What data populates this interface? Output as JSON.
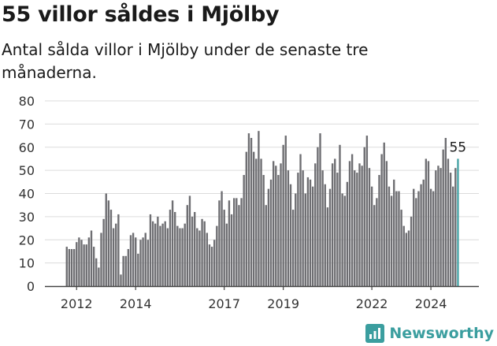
{
  "title": "55 villor såldes i Mjölby",
  "subtitle": "Antal sålda villor i Mjölby under de senaste tre månaderna.",
  "brand": {
    "name": "Newsworthy",
    "icon": "bar-chart-icon",
    "color": "#3b9e9f"
  },
  "chart_data": {
    "type": "bar",
    "title": "55 villor såldes i Mjölby",
    "subtitle": "Antal sålda villor i Mjölby under de senaste tre månaderna.",
    "xlabel": "",
    "ylabel": "",
    "ylim": [
      0,
      80
    ],
    "yticks": [
      0,
      10,
      20,
      30,
      40,
      50,
      60,
      70,
      80
    ],
    "xtick_labels": [
      {
        "label": "2012",
        "index": 4
      },
      {
        "label": "2014",
        "index": 28
      },
      {
        "label": "2017",
        "index": 64
      },
      {
        "label": "2019",
        "index": 88
      },
      {
        "label": "2022",
        "index": 124
      },
      {
        "label": "2024",
        "index": 148
      }
    ],
    "grid": true,
    "bar_color": "#6e6e72",
    "highlight_color": "#3b9e9f",
    "highlight_label": "55",
    "series": [
      {
        "values": [
          17,
          16,
          16,
          16,
          19,
          21,
          20,
          18,
          18,
          21,
          24,
          17,
          12,
          8,
          23,
          29,
          40,
          37,
          33,
          25,
          27,
          31,
          5,
          13,
          13,
          16,
          22,
          23,
          21,
          14,
          20,
          21,
          23,
          20,
          31,
          28,
          27,
          30,
          26,
          27,
          28,
          25,
          33,
          37,
          32,
          26,
          25,
          25,
          27,
          35,
          39,
          30,
          32,
          25,
          24,
          29,
          28,
          23,
          18,
          17,
          20,
          26,
          37,
          41,
          33,
          27,
          37,
          31,
          38,
          38,
          35,
          38,
          48,
          58,
          66,
          64,
          58,
          55,
          67,
          55,
          48,
          35,
          42,
          46,
          54,
          52,
          48,
          53,
          61,
          65,
          50,
          44,
          33,
          40,
          49,
          57,
          50,
          40,
          47,
          46,
          43,
          53,
          60,
          66,
          50,
          44,
          34,
          42,
          53,
          55,
          49,
          61,
          40,
          39,
          45,
          54,
          57,
          50,
          49,
          53,
          52,
          60,
          65,
          51,
          43,
          35,
          38,
          48,
          57,
          62,
          54,
          43,
          39,
          46,
          41,
          41,
          33,
          26,
          23,
          24,
          30,
          42,
          38,
          41,
          44,
          46,
          55,
          54,
          42,
          41,
          50,
          52,
          51,
          59,
          64,
          55,
          49,
          43,
          51,
          55
        ]
      }
    ]
  }
}
